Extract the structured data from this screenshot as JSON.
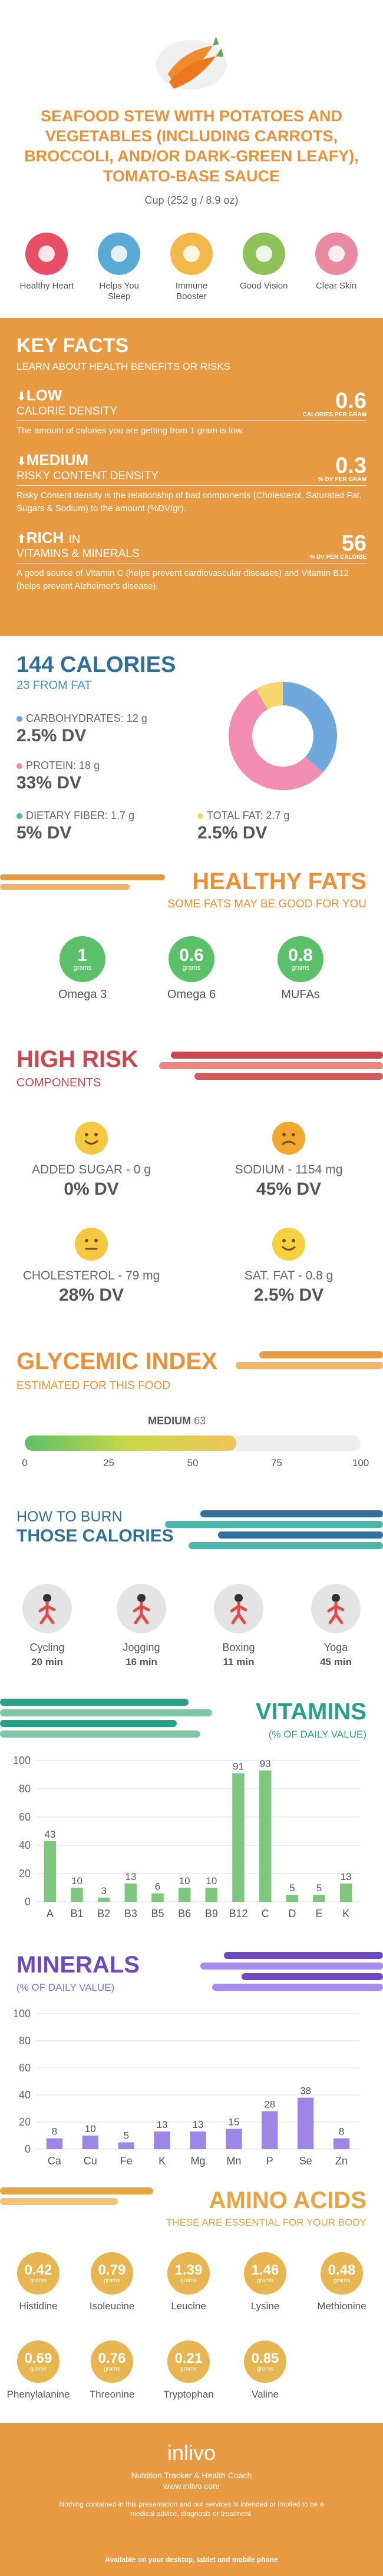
{
  "title": "SEAFOOD STEW WITH POTATOES AND VEGETABLES (INCLUDING CARROTS, BROCCOLI, AND/OR DARK-GREEN LEAFY), TOMATO-BASE SAUCE",
  "serving": "Cup (252 g / 8.9 oz)",
  "benefits": [
    {
      "label": "Healthy Heart",
      "icon": "heart-monitor-icon",
      "color": "#e94f64"
    },
    {
      "label": "Helps You Sleep",
      "icon": "sleep-icon",
      "color": "#5aa9d6"
    },
    {
      "label": "Immune Booster",
      "icon": "shield-icon",
      "color": "#f2b94a"
    },
    {
      "label": "Good Vision",
      "icon": "eye-icon",
      "color": "#8fc15a"
    },
    {
      "label": "Clear Skin",
      "icon": "face-icon",
      "color": "#e98aa0"
    }
  ],
  "key_facts": {
    "title": "KEY FACTS",
    "subtitle": "LEARN ABOUT HEALTH BENEFITS OR RISKS",
    "items": [
      {
        "level": "LOW",
        "name": "CALORIE DENSITY",
        "value": "0.6",
        "unit": "CALORIES PER GRAM",
        "arrow": "down",
        "desc": "The amount of calories you are getting from 1 gram is low."
      },
      {
        "level": "MEDIUM",
        "name": "RISKY CONTENT DENSITY",
        "value": "0.3",
        "unit": "% DV PER GRAM",
        "arrow": "down",
        "desc": "Risky Content density is the relationship of bad components (Cholesterol, Saturated Fat, Sugars & Sodium) to the amount (%DV/gr)."
      },
      {
        "level": "RICH",
        "level_suffix": "IN",
        "name": "VITAMINS & MINERALS",
        "value": "56",
        "unit": "% DV PER CALORIE",
        "arrow": "up",
        "desc": "A good source of Vitamin C (helps prevent cardiovascular diseases) and Vitamin B12 (helps prevent Alzheimer's disease)."
      }
    ]
  },
  "calories": {
    "title": "144 CALORIES",
    "subtitle": "23 FROM FAT",
    "carbs": {
      "label": "CARBOHYDRATES: 12 g",
      "dv": "2.5% DV",
      "color": "#6fa8dc"
    },
    "protein": {
      "label": "PROTEIN: 18 g",
      "dv": "33% DV",
      "color": "#f28db2"
    },
    "fiber": {
      "label": "DIETARY FIBER: 1.7 g",
      "dv": "5% DV",
      "color": "#4cb6a8"
    },
    "fat": {
      "label": "TOTAL FAT: 2.7 g",
      "dv": "2.5% DV",
      "color": "#f5d76e"
    }
  },
  "chart_data": [
    {
      "type": "pie",
      "categories": [
        "Carbohydrates",
        "Protein",
        "Fat"
      ],
      "values": [
        12,
        18,
        2.7
      ],
      "colors": [
        "#6fa8dc",
        "#f28db2",
        "#f5d76e"
      ]
    },
    {
      "type": "bar",
      "categories": [
        "A",
        "B1",
        "B2",
        "B3",
        "B5",
        "B6",
        "B9",
        "B12",
        "C",
        "D",
        "E",
        "K"
      ],
      "values": [
        43,
        10,
        3,
        13,
        6,
        10,
        10,
        91,
        93,
        5,
        5,
        13
      ],
      "ylim": [
        0,
        100
      ],
      "yticks": [
        0,
        20,
        40,
        60,
        80,
        100
      ],
      "color": "#7fc77f"
    },
    {
      "type": "bar",
      "categories": [
        "Ca",
        "Cu",
        "Fe",
        "K",
        "Mg",
        "Mn",
        "P",
        "Se",
        "Zn"
      ],
      "values": [
        8,
        10,
        5,
        13,
        13,
        15,
        28,
        38,
        8
      ],
      "ylim": [
        0,
        100
      ],
      "yticks": [
        0,
        20,
        40,
        60,
        80,
        100
      ],
      "color": "#9d86e6"
    }
  ],
  "healthy_fats": {
    "title": "HEALTHY FATS",
    "subtitle": "SOME FATS MAY BE GOOD FOR YOU",
    "unit": "grams",
    "items": [
      {
        "value": "1",
        "label": "Omega 3"
      },
      {
        "value": "0.6",
        "label": "Omega 6"
      },
      {
        "value": "0.8",
        "label": "MUFAs"
      }
    ]
  },
  "high_risk": {
    "title": "HIGH RISK",
    "subtitle": "COMPONENTS",
    "items": [
      {
        "label": "ADDED SUGAR - 0 g",
        "dv": "0% DV",
        "face": "happy",
        "color": "#f5c842"
      },
      {
        "label": "SODIUM - 1154 mg",
        "dv": "45% DV",
        "face": "sad",
        "color": "#f0a830"
      },
      {
        "label": "CHOLESTEROL - 79 mg",
        "dv": "28% DV",
        "face": "neutral",
        "color": "#f5c842"
      },
      {
        "label": "SAT. FAT - 0.8 g",
        "dv": "2.5% DV",
        "face": "happy",
        "color": "#f5d040"
      }
    ]
  },
  "glycemic": {
    "title": "GLYCEMIC INDEX",
    "subtitle": "ESTIMATED FOR THIS FOOD",
    "level": "MEDIUM",
    "value": "63",
    "ticks": [
      "0",
      "25",
      "50",
      "75",
      "100"
    ]
  },
  "burn": {
    "title1": "HOW TO BURN",
    "title2": "THOSE CALORIES",
    "items": [
      {
        "name": "Cycling",
        "time": "20 min",
        "icon": "cycling-icon"
      },
      {
        "name": "Jogging",
        "time": "16 min",
        "icon": "jogging-icon"
      },
      {
        "name": "Boxing",
        "time": "11 min",
        "icon": "boxing-icon"
      },
      {
        "name": "Yoga",
        "time": "45 min",
        "icon": "yoga-icon"
      }
    ]
  },
  "vitamins": {
    "title": "VITAMINS",
    "subtitle": "(% OF DAILY VALUE)"
  },
  "minerals": {
    "title": "MINERALS",
    "subtitle": "(% OF DAILY VALUE)"
  },
  "amino": {
    "title": "AMINO ACIDS",
    "subtitle": "THESE ARE ESSENTIAL FOR YOUR BODY",
    "unit": "grams",
    "items": [
      {
        "value": "0.42",
        "label": "Histidine"
      },
      {
        "value": "0.79",
        "label": "Isoleucine"
      },
      {
        "value": "1.39",
        "label": "Leucine"
      },
      {
        "value": "1.46",
        "label": "Lysine"
      },
      {
        "value": "0.48",
        "label": "Methionine"
      },
      {
        "value": "0.69",
        "label": "Phenylalanine"
      },
      {
        "value": "0.76",
        "label": "Threonine"
      },
      {
        "value": "0.21",
        "label": "Tryptophan"
      },
      {
        "value": "0.85",
        "label": "Valine"
      }
    ]
  },
  "footer": {
    "logo": "inlivo",
    "tagline1": "Nutrition Tracker & Health Coach",
    "tagline2": "www.inlivo.com",
    "disclaimer": "Nothing contained in this presentation and our services is intended or implied to be a medical advice, diagnosis or treatment.",
    "available": "Available on your desktop, tablet and mobile phone"
  }
}
